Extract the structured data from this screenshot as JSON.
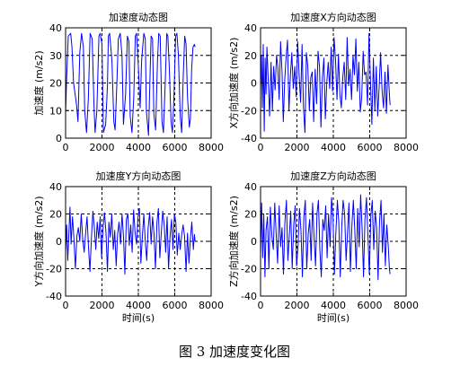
{
  "figure_caption": "图 3  加速度变化图",
  "chart_data": [
    {
      "type": "line",
      "title": "加速度动态图",
      "xlabel": "",
      "ylabel": "加速度 (m/s2)",
      "xlim": [
        0,
        8000
      ],
      "ylim": [
        0,
        40
      ],
      "xticks": [
        "0",
        "2000",
        "4000",
        "6000",
        "8000"
      ],
      "yticks": [
        "0",
        "10",
        "20",
        "30",
        "40"
      ],
      "grid_x": [
        2000,
        4000,
        6000
      ],
      "grid_y": [
        10,
        20,
        30
      ],
      "color": "#0000ff",
      "series": [
        {
          "x": [
            0,
            60,
            150,
            280,
            350,
            440,
            600,
            680,
            780,
            880,
            980,
            1050,
            1150,
            1250,
            1350,
            1460,
            1560,
            1620,
            1720,
            1830,
            1900,
            2000,
            2080,
            2200,
            2300,
            2350,
            2420,
            2550,
            2650,
            2720,
            2820,
            2900,
            3000,
            3100,
            3180,
            3300,
            3400,
            3480,
            3550,
            3650,
            3750,
            3830,
            3900,
            4000,
            4100,
            4180,
            4300,
            4380,
            4440,
            4560,
            4630,
            4700,
            4780,
            4850,
            4950,
            5050,
            5120,
            5200,
            5300,
            5380,
            5480,
            5560,
            5620,
            5700,
            5800,
            5870,
            5950,
            6050,
            6120,
            6200,
            6300,
            6380,
            6460,
            6550,
            6620,
            6700,
            6800,
            6860,
            6930,
            7000,
            7080,
            7120
          ],
          "y": [
            9,
            22,
            37,
            38,
            33,
            20,
            12,
            6,
            31,
            38,
            33,
            10,
            2,
            14,
            38,
            36,
            12,
            2,
            10,
            37,
            38,
            34,
            2,
            5,
            19,
            37,
            38,
            28,
            6,
            3,
            20,
            36,
            38,
            30,
            5,
            16,
            37,
            35,
            8,
            2,
            15,
            37,
            38,
            26,
            11,
            28,
            38,
            36,
            10,
            1,
            20,
            37,
            36,
            9,
            3,
            28,
            38,
            37,
            6,
            2,
            21,
            38,
            37,
            26,
            6,
            2,
            14,
            37,
            38,
            30,
            8,
            2,
            21,
            37,
            34,
            15,
            4,
            7,
            25,
            33,
            34,
            33
          ]
        }
      ]
    },
    {
      "type": "line",
      "title": "加速度X方向动态图",
      "xlabel": "",
      "ylabel": "X方向加速度 (m/s2)",
      "xlim": [
        0,
        8000
      ],
      "ylim": [
        -40,
        40
      ],
      "xticks": [
        "0",
        "2000",
        "4000",
        "6000",
        "8000"
      ],
      "yticks": [
        "-40",
        "-20",
        "0",
        "20",
        "40"
      ],
      "grid_x": [
        2000,
        4000,
        6000
      ],
      "grid_y": [
        -20,
        0,
        20
      ],
      "color": "#0000ff",
      "series": [
        {
          "x": [
            0,
            50,
            100,
            150,
            200,
            250,
            300,
            350,
            420,
            500,
            580,
            650,
            720,
            800,
            880,
            950,
            1020,
            1100,
            1180,
            1250,
            1330,
            1400,
            1480,
            1560,
            1640,
            1720,
            1800,
            1880,
            1960,
            2040,
            2120,
            2200,
            2280,
            2360,
            2440,
            2520,
            2600,
            2680,
            2760,
            2840,
            2920,
            3000,
            3080,
            3160,
            3240,
            3320,
            3400,
            3480,
            3560,
            3640,
            3720,
            3800,
            3880,
            3960,
            4040,
            4120,
            4200,
            4280,
            4360,
            4440,
            4520,
            4600,
            4680,
            4760,
            4840,
            4920,
            5000,
            5080,
            5160,
            5240,
            5320,
            5400,
            5480,
            5560,
            5640,
            5720,
            5800,
            5880,
            5960,
            6040,
            6120,
            6200,
            6280,
            6360,
            6440,
            6520,
            6600,
            6680,
            6760,
            6840,
            6920,
            7000,
            7080,
            7120
          ],
          "y": [
            -6,
            20,
            -18,
            28,
            -35,
            18,
            -8,
            26,
            3,
            -24,
            15,
            -20,
            12,
            -5,
            20,
            12,
            -12,
            30,
            8,
            -28,
            2,
            18,
            31,
            -20,
            5,
            22,
            -4,
            12,
            -10,
            30,
            6,
            -14,
            28,
            -18,
            -36,
            22,
            12,
            -20,
            4,
            8,
            -28,
            10,
            -15,
            23,
            12,
            -32,
            4,
            18,
            -26,
            0,
            15,
            -4,
            26,
            -6,
            33,
            17,
            -12,
            21,
            -8,
            -18,
            4,
            15,
            -12,
            33,
            -2,
            10,
            -12,
            20,
            6,
            32,
            -6,
            15,
            -21,
            -10,
            23,
            6,
            8,
            -16,
            36,
            2,
            -30,
            18,
            -20,
            12,
            -24,
            -3,
            22,
            -6,
            -18,
            8,
            -22,
            13,
            -8,
            -16
          ]
        }
      ]
    },
    {
      "type": "line",
      "title": "加速度Y方向动态图",
      "xlabel": "时间(s)",
      "ylabel": "Y方向加速度 (m/s2)",
      "xlim": [
        0,
        8000
      ],
      "ylim": [
        -40,
        40
      ],
      "xticks": [
        "0",
        "2000",
        "4000",
        "6000",
        "8000"
      ],
      "yticks": [
        "-40",
        "-20",
        "0",
        "20",
        "40"
      ],
      "grid_x": [
        2000,
        4000,
        6000
      ],
      "grid_y": [
        -20,
        0,
        20
      ],
      "color": "#0000ff",
      "series": [
        {
          "x": [
            0,
            60,
            120,
            180,
            240,
            300,
            380,
            460,
            540,
            620,
            700,
            780,
            860,
            940,
            1020,
            1100,
            1180,
            1260,
            1340,
            1420,
            1500,
            1580,
            1660,
            1740,
            1820,
            1900,
            1980,
            2060,
            2140,
            2220,
            2300,
            2380,
            2460,
            2540,
            2620,
            2700,
            2780,
            2860,
            2940,
            3020,
            3100,
            3180,
            3260,
            3340,
            3420,
            3500,
            3580,
            3660,
            3740,
            3820,
            3900,
            3980,
            4060,
            4140,
            4220,
            4300,
            4380,
            4460,
            4540,
            4620,
            4700,
            4780,
            4860,
            4940,
            5020,
            5100,
            5180,
            5260,
            5340,
            5420,
            5500,
            5580,
            5660,
            5740,
            5820,
            5900,
            5980,
            6060,
            6140,
            6220,
            6300,
            6380,
            6460,
            6540,
            6620,
            6700,
            6780,
            6860,
            6940,
            7020,
            7080,
            7120
          ],
          "y": [
            -8,
            12,
            -14,
            5,
            25,
            -2,
            18,
            2,
            -20,
            4,
            10,
            0,
            20,
            2,
            -8,
            6,
            18,
            -4,
            -22,
            3,
            22,
            10,
            -6,
            14,
            2,
            18,
            -12,
            10,
            21,
            6,
            -22,
            14,
            3,
            20,
            -6,
            8,
            -18,
            5,
            14,
            -2,
            20,
            4,
            -24,
            16,
            20,
            -3,
            12,
            -8,
            23,
            6,
            -2,
            18,
            24,
            -16,
            4,
            20,
            0,
            -14,
            10,
            21,
            -2,
            18,
            6,
            -20,
            14,
            24,
            -12,
            6,
            22,
            12,
            -8,
            18,
            -20,
            3,
            16,
            -6,
            20,
            14,
            -10,
            6,
            -6,
            5,
            12,
            4,
            -22,
            6,
            -16,
            2,
            14,
            -6,
            5,
            0
          ]
        }
      ]
    },
    {
      "type": "line",
      "title": "加速度Z方向动态图",
      "xlabel": "时间(s)",
      "ylabel": "Z方向加速度 (m/s2)",
      "xlim": [
        0,
        8000
      ],
      "ylim": [
        -40,
        40
      ],
      "xticks": [
        "0",
        "2000",
        "4000",
        "6000",
        "8000"
      ],
      "yticks": [
        "-40",
        "-20",
        "0",
        "20",
        "40"
      ],
      "grid_x": [
        2000,
        4000,
        6000
      ],
      "grid_y": [
        -20,
        0,
        20
      ],
      "color": "#0000ff",
      "series": [
        {
          "x": [
            0,
            60,
            120,
            180,
            240,
            300,
            380,
            460,
            540,
            620,
            700,
            780,
            860,
            940,
            1020,
            1100,
            1180,
            1260,
            1340,
            1420,
            1500,
            1580,
            1660,
            1740,
            1820,
            1900,
            1980,
            2060,
            2140,
            2220,
            2300,
            2380,
            2460,
            2540,
            2620,
            2700,
            2780,
            2860,
            2940,
            3020,
            3100,
            3180,
            3260,
            3340,
            3420,
            3500,
            3580,
            3660,
            3740,
            3820,
            3900,
            3980,
            4060,
            4140,
            4220,
            4300,
            4380,
            4460,
            4540,
            4620,
            4700,
            4780,
            4860,
            4940,
            5020,
            5100,
            5180,
            5260,
            5340,
            5420,
            5500,
            5580,
            5660,
            5740,
            5820,
            5900,
            5980,
            6060,
            6140,
            6220,
            6300,
            6380,
            6460,
            6540,
            6620,
            6700,
            6780,
            6860,
            6940,
            7020,
            7080,
            7120
          ],
          "y": [
            -10,
            28,
            -12,
            20,
            -26,
            8,
            18,
            -20,
            25,
            4,
            -6,
            28,
            5,
            -16,
            26,
            -4,
            10,
            -24,
            14,
            30,
            -14,
            4,
            22,
            -20,
            12,
            26,
            -18,
            -4,
            24,
            8,
            -26,
            18,
            30,
            -20,
            6,
            16,
            -14,
            28,
            4,
            -18,
            20,
            30,
            -6,
            -26,
            16,
            8,
            26,
            -12,
            20,
            -4,
            32,
            18,
            -24,
            6,
            30,
            14,
            -26,
            10,
            30,
            20,
            -14,
            6,
            28,
            -22,
            12,
            30,
            8,
            -20,
            24,
            -4,
            34,
            10,
            -26,
            16,
            32,
            4,
            -24,
            18,
            30,
            -6,
            22,
            10,
            -28,
            14,
            30,
            -8,
            20,
            -18,
            12,
            -4,
            -20,
            -24
          ]
        }
      ]
    }
  ]
}
